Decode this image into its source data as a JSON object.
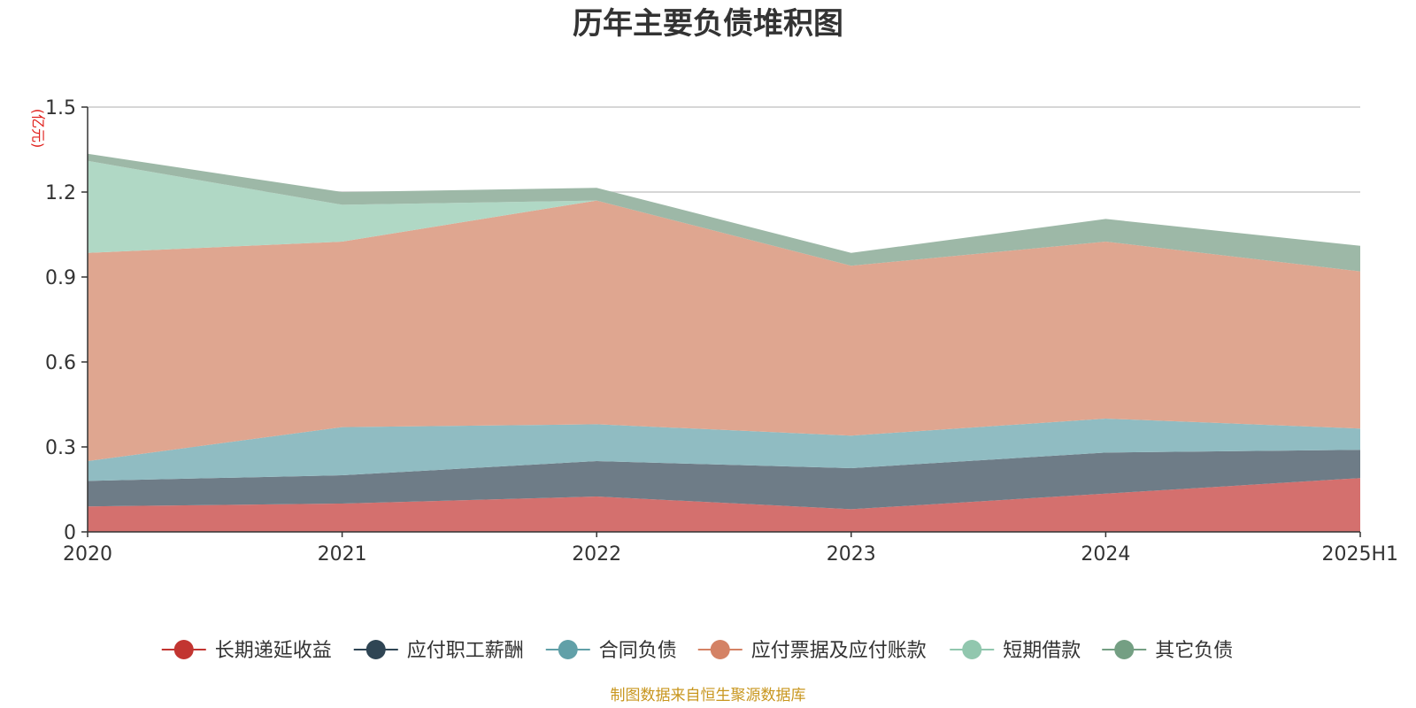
{
  "chart_data": {
    "type": "area",
    "stacked": true,
    "title": "历年主要负债堆积图",
    "unit": "(亿元)",
    "source": "制图数据来自恒生聚源数据库",
    "categories": [
      "2020",
      "2021",
      "2022",
      "2023",
      "2024",
      "2025H1"
    ],
    "ylim": [
      0,
      1.5
    ],
    "yticks": [
      0,
      0.3,
      0.6,
      0.9,
      1.2,
      1.5
    ],
    "ytick_labels": [
      "0",
      "0.3",
      "0.6",
      "0.9",
      "1.2",
      "1.5"
    ],
    "grid": true,
    "legend_position": "bottom",
    "series": [
      {
        "name": "长期递延收益",
        "color": "#c23531",
        "fill": "#d4706e",
        "values": [
          0.09,
          0.1,
          0.125,
          0.08,
          0.135,
          0.19
        ]
      },
      {
        "name": "应付职工薪酬",
        "color": "#2f4554",
        "fill": "#6e7c87",
        "values": [
          0.09,
          0.1,
          0.125,
          0.145,
          0.145,
          0.1
        ]
      },
      {
        "name": "合同负债",
        "color": "#61a0a8",
        "fill": "#90bcc2",
        "values": [
          0.07,
          0.17,
          0.13,
          0.115,
          0.12,
          0.075
        ]
      },
      {
        "name": "应付票据及应付账款",
        "color": "#d48265",
        "fill": "#dfa690",
        "values": [
          0.735,
          0.655,
          0.79,
          0.6,
          0.625,
          0.555
        ]
      },
      {
        "name": "短期借款",
        "color": "#91c7ae",
        "fill": "#b0d8c5",
        "values": [
          0.325,
          0.13,
          0.0,
          0.0,
          0.0,
          0.0
        ]
      },
      {
        "name": "其它负债",
        "color": "#749f83",
        "fill": "#9db8a7",
        "values": [
          0.025,
          0.045,
          0.045,
          0.045,
          0.08,
          0.09
        ]
      }
    ]
  }
}
